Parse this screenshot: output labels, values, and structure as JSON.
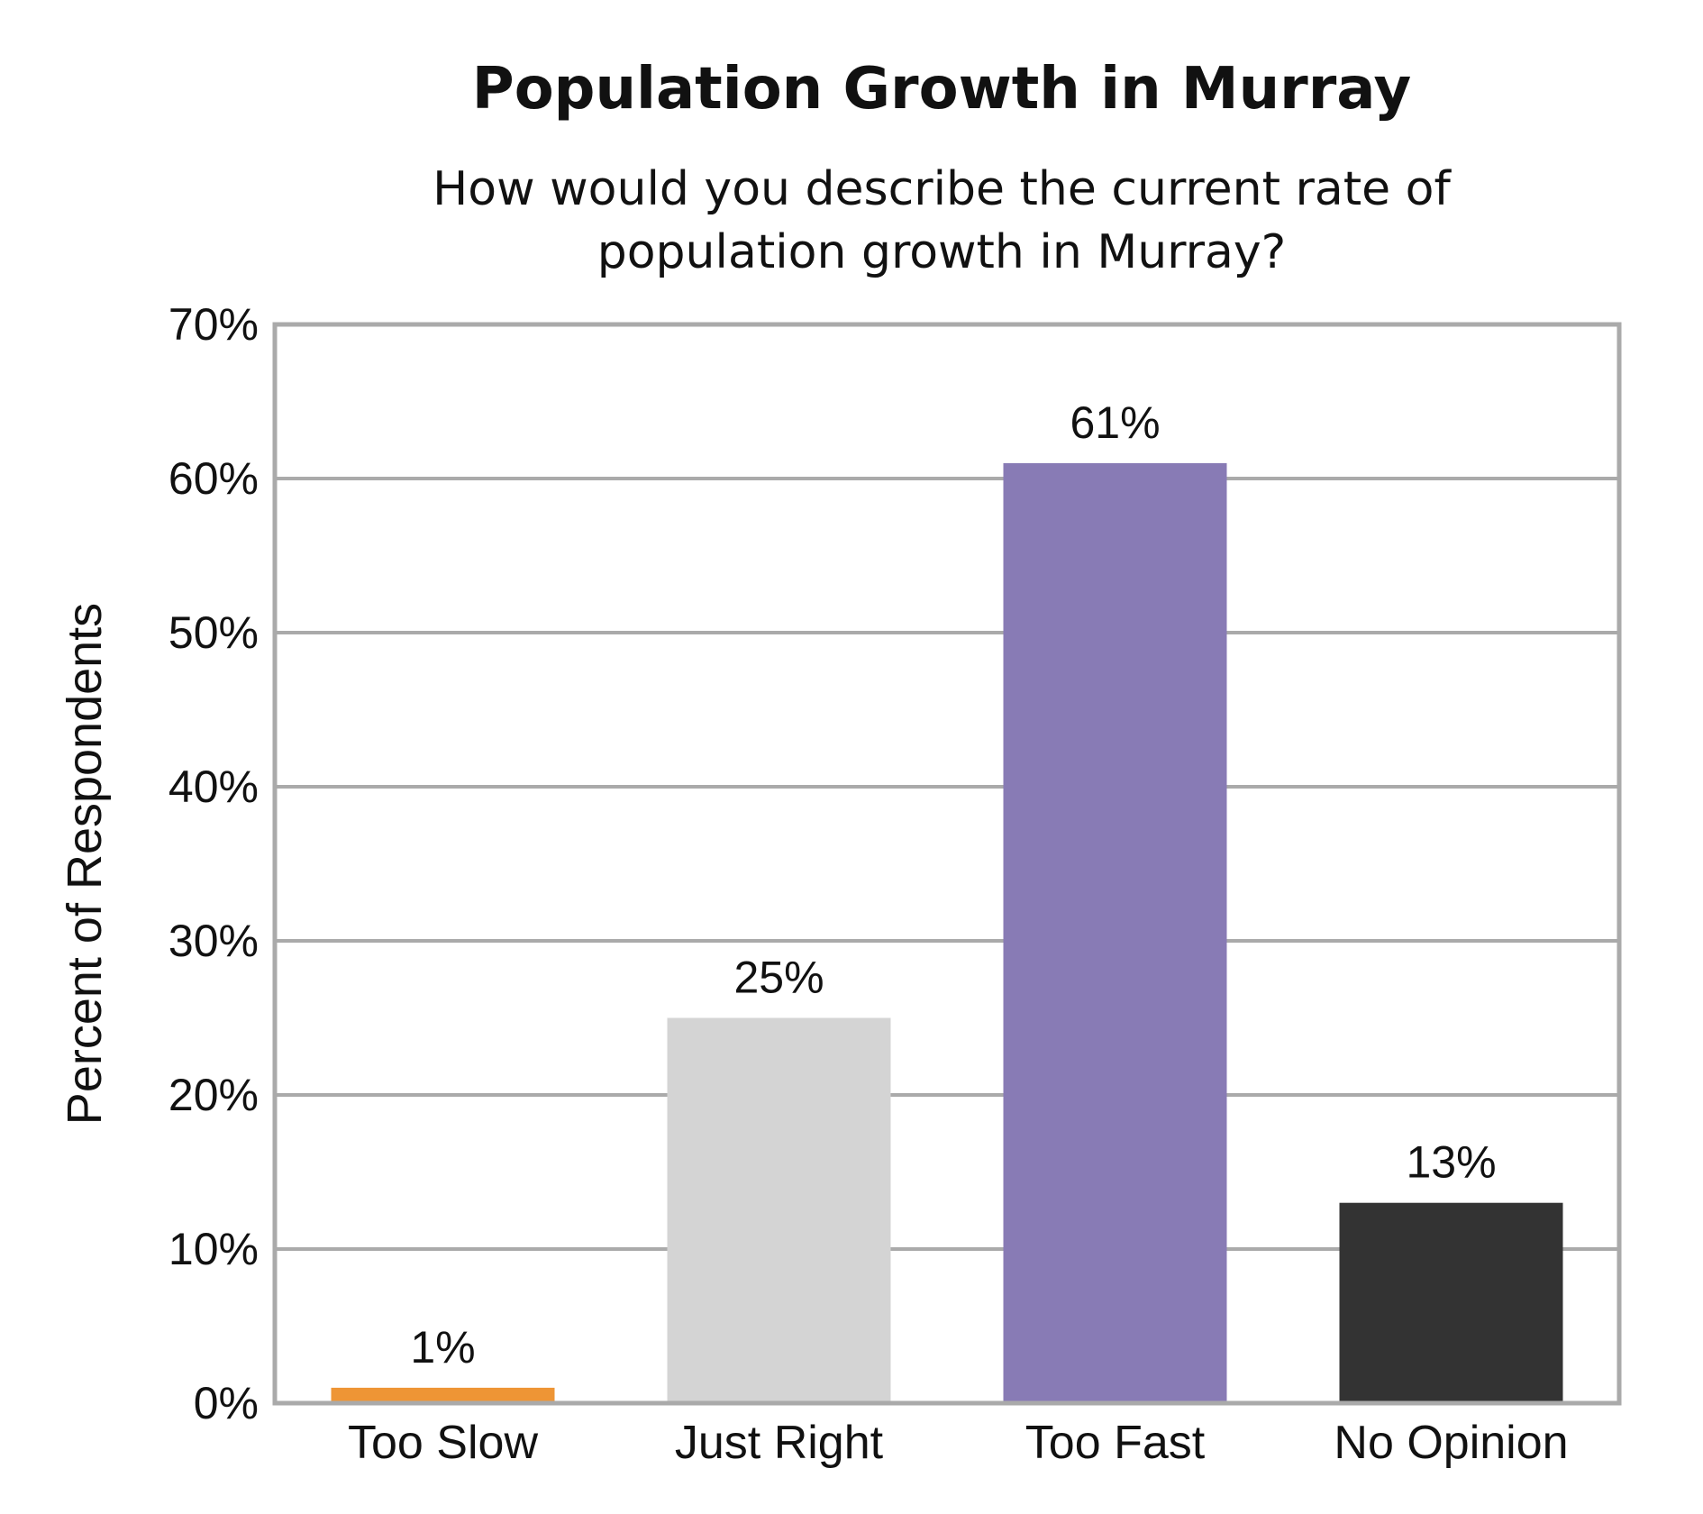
{
  "chart_data": {
    "type": "bar",
    "title": "Population Growth in Murray",
    "subtitle_lines": [
      "How would you describe the current rate of",
      "population growth in Murray?"
    ],
    "xlabel": "",
    "ylabel": "Percent of Respondents",
    "ylim": [
      0,
      70
    ],
    "y_ticks": [
      0,
      10,
      20,
      30,
      40,
      50,
      60,
      70
    ],
    "y_tick_labels": [
      "0%",
      "10%",
      "20%",
      "30%",
      "40%",
      "50%",
      "60%",
      "70%"
    ],
    "categories": [
      "Too Slow",
      "Just Right",
      "Too Fast",
      "No Opinion"
    ],
    "values": [
      1,
      25,
      61,
      13
    ],
    "data_labels": [
      "1%",
      "25%",
      "61%",
      "13%"
    ],
    "bar_colors": [
      "#EE9535",
      "#D4D4D4",
      "#887BB5",
      "#333333"
    ],
    "grid": true,
    "grid_color": "#AAAAAA",
    "frame_color": "#AAAAAA",
    "legend": "none"
  }
}
